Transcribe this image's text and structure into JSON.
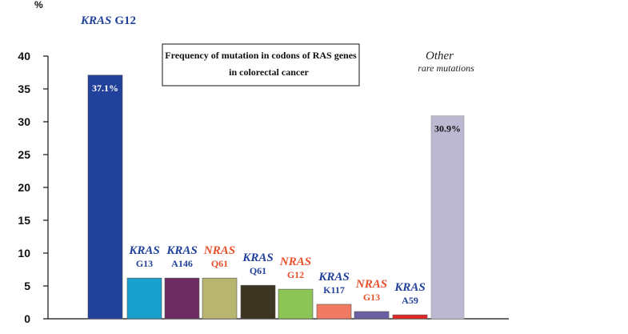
{
  "chart_data": {
    "type": "bar",
    "title": "Frequency of mutation in codons of RAS genes",
    "title_line2": "in colorectal cancer",
    "ylabel": "%",
    "ylim": [
      0,
      40
    ],
    "yticks": [
      0,
      5,
      10,
      15,
      20,
      25,
      30,
      35,
      40
    ],
    "categories": [
      {
        "gene": "KRAS",
        "codon": "G12",
        "value": 37.1,
        "label": "37.1%",
        "color": "#22419a",
        "label_color": "#22419a"
      },
      {
        "gene": "KRAS",
        "codon": "G13",
        "value": 6.2,
        "color": "#1aa0cc",
        "label_color": "#22419a"
      },
      {
        "gene": "KRAS",
        "codon": "A146",
        "value": 6.2,
        "color": "#6c2c62",
        "label_color": "#22419a"
      },
      {
        "gene": "NRAS",
        "codon": "Q61",
        "value": 6.2,
        "color": "#b8b570",
        "label_color": "#e8502a"
      },
      {
        "gene": "KRAS",
        "codon": "Q61",
        "value": 5.1,
        "color": "#3c3522",
        "label_color": "#22419a"
      },
      {
        "gene": "NRAS",
        "codon": "G12",
        "value": 4.5,
        "color": "#8cc455",
        "label_color": "#e8502a"
      },
      {
        "gene": "KRAS",
        "codon": "K117",
        "value": 2.2,
        "color": "#f07a62",
        "label_color": "#22419a"
      },
      {
        "gene": "NRAS",
        "codon": "G13",
        "value": 1.1,
        "color": "#6a5fa2",
        "label_color": "#e8502a"
      },
      {
        "gene": "KRAS",
        "codon": "A59",
        "value": 0.6,
        "color": "#e32727",
        "label_color": "#22419a"
      },
      {
        "gene": "Other",
        "codon": "rare mutations",
        "value": 30.9,
        "label": "30.9%",
        "color": "#bcb8d2",
        "label_color": "#222222"
      }
    ]
  }
}
